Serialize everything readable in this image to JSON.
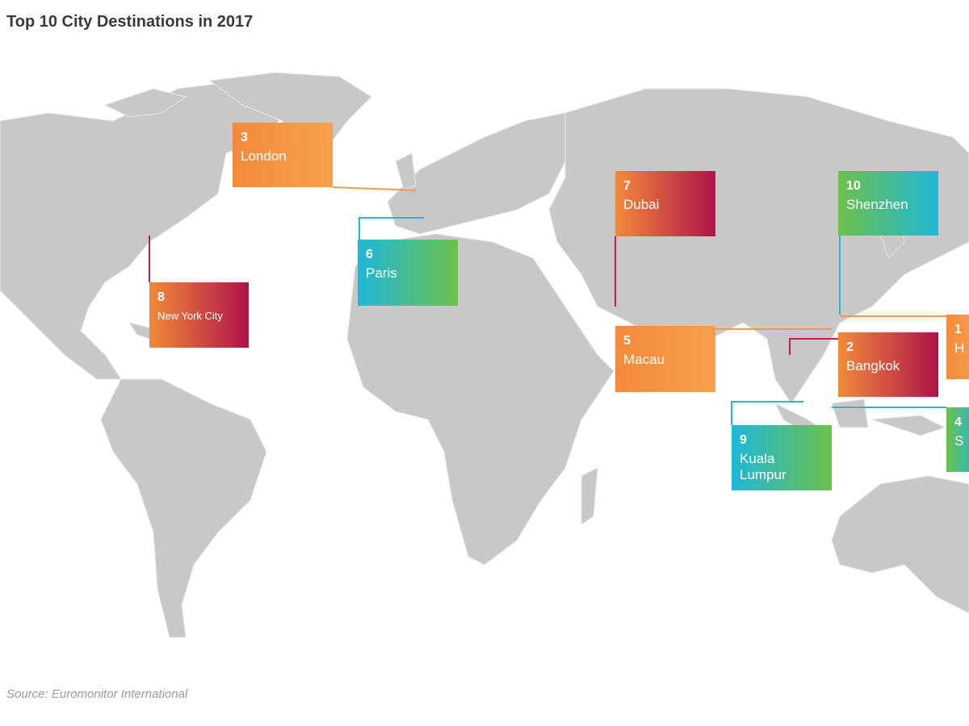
{
  "title": "Top 10 City Destinations in 2017",
  "labels": [
    {
      "rank": 3,
      "city": "London"
    },
    {
      "rank": 7,
      "city": "Dubai"
    },
    {
      "rank": 10,
      "city": "Shenzhen"
    },
    {
      "rank": 6,
      "city": "Paris"
    },
    {
      "rank": 8,
      "city": "New York City"
    },
    {
      "rank": 5,
      "city": "Macau"
    },
    {
      "rank": 2,
      "city": "Bangkok"
    },
    {
      "rank": 1,
      "city": "H"
    },
    {
      "rank": 9,
      "city": "Kuala Lumpur"
    },
    {
      "rank": 4,
      "city": "S"
    }
  ],
  "source": "Source: Euromonitor International"
}
